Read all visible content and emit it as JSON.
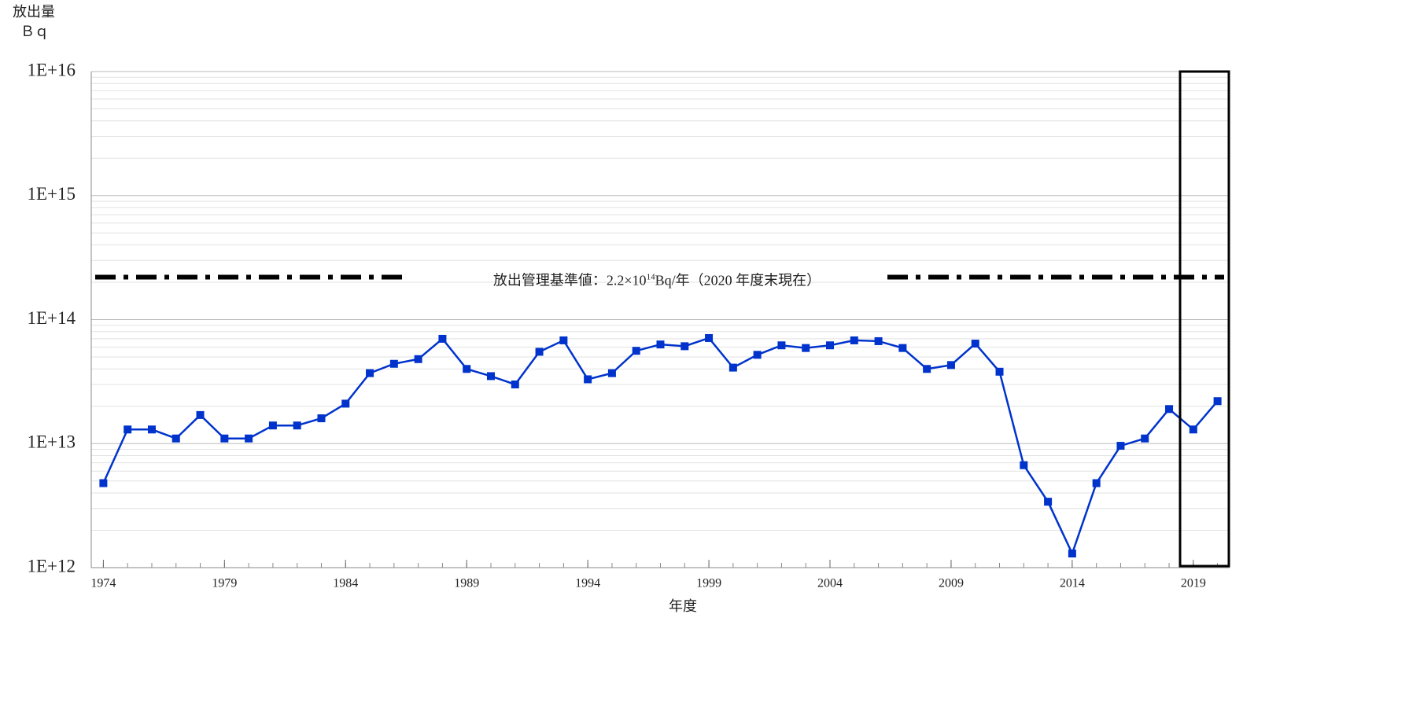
{
  "chart_data": {
    "type": "line",
    "y_label_1": "放出量",
    "y_label_2": "Ｂｑ",
    "x_label": "年度",
    "x": [
      1974,
      1975,
      1976,
      1977,
      1978,
      1979,
      1980,
      1981,
      1982,
      1983,
      1984,
      1985,
      1986,
      1987,
      1988,
      1989,
      1990,
      1991,
      1992,
      1993,
      1994,
      1995,
      1996,
      1997,
      1998,
      1999,
      2000,
      2001,
      2002,
      2003,
      2004,
      2005,
      2006,
      2007,
      2008,
      2009,
      2010,
      2011,
      2012,
      2013,
      2014,
      2015,
      2016,
      2017,
      2018,
      2019,
      2020
    ],
    "series": [
      {
        "color": "#0033cc",
        "values": [
          4800000000000,
          13000000000000,
          13000000000000,
          11000000000000,
          17000000000000,
          11000000000000,
          11000000000000,
          14000000000000,
          14000000000000,
          16000000000000,
          21000000000000,
          37000000000000,
          44000000000000,
          48000000000000,
          70000000000000,
          40000000000000,
          35000000000000,
          30000000000000,
          55000000000000,
          68000000000000,
          33000000000000,
          37000000000000,
          56000000000000,
          63000000000000,
          61000000000000,
          71000000000000,
          41000000000000,
          52000000000000,
          62000000000000,
          59000000000000,
          62000000000000,
          68000000000000,
          67000000000000,
          59000000000000,
          40000000000000,
          43000000000000,
          64000000000000,
          38000000000000,
          6700000000000,
          3400000000000,
          1300000000000,
          4800000000000,
          9600000000000,
          11000000000000,
          19000000000000,
          13000000000000,
          22000000000000
        ]
      }
    ],
    "reference": {
      "value": 220000000000000,
      "label_main": "放出管理基準値：2.2×10",
      "label_sup": "14",
      "label_rest": "Bq/年（2020 年度末現在）"
    },
    "xlim": [
      1973.5,
      2020.5
    ],
    "xticks": [
      1974,
      1979,
      1984,
      1989,
      1994,
      1999,
      2004,
      2009,
      2014,
      2019
    ],
    "ylim": [
      1000000000000,
      10000000000000000
    ],
    "yticks": [
      {
        "value": 1000000000000,
        "label": "1E+12"
      },
      {
        "value": 10000000000000,
        "label": "1E+13"
      },
      {
        "value": 100000000000000,
        "label": "1E+14"
      },
      {
        "value": 1000000000000000,
        "label": "1E+15"
      },
      {
        "value": 10000000000000000,
        "label": "1E+16"
      }
    ],
    "log_y": true,
    "grid": true
  }
}
